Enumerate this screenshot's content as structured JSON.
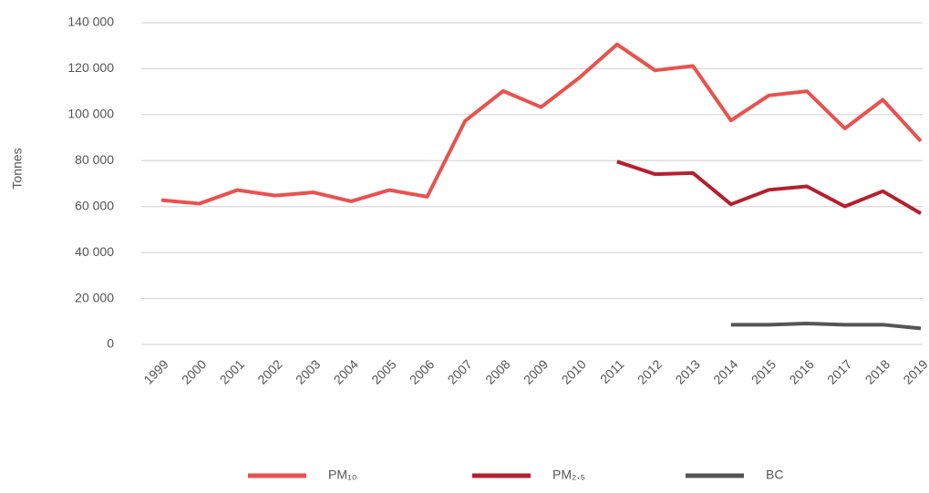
{
  "chart_data": {
    "type": "line",
    "y_label": "Tonnes",
    "categories": [
      "1999",
      "2000",
      "2001",
      "2002",
      "2003",
      "2004",
      "2005",
      "2006",
      "2007",
      "2008",
      "2009",
      "2010",
      "2011",
      "2012",
      "2013",
      "2014",
      "2015",
      "2016",
      "2017",
      "2018",
      "2019"
    ],
    "series": [
      {
        "name": "PM₁₀",
        "color": "#e8524f",
        "values": [
          62800,
          61300,
          67200,
          64800,
          66200,
          62300,
          67200,
          64300,
          97300,
          110300,
          103300,
          116000,
          130600,
          119300,
          121200,
          97500,
          108400,
          110200,
          94000,
          106500,
          88500
        ]
      },
      {
        "name": "PM₂.₅",
        "color": "#b5202e",
        "values": [
          null,
          null,
          null,
          null,
          null,
          null,
          null,
          null,
          null,
          null,
          null,
          null,
          79600,
          74100,
          74600,
          61000,
          67300,
          68800,
          60100,
          66700,
          57000
        ]
      },
      {
        "name": "BC",
        "color": "#555555",
        "values": [
          null,
          null,
          null,
          null,
          null,
          null,
          null,
          null,
          null,
          null,
          null,
          null,
          null,
          null,
          null,
          8600,
          8600,
          9100,
          8600,
          8600,
          7000
        ]
      }
    ],
    "ylim": [
      0,
      140000
    ],
    "yticks": [
      0,
      {
        "value": 20000,
        "label": "20 000"
      },
      {
        "value": 40000,
        "label": "40 000"
      },
      {
        "value": 60000,
        "label": "60 000"
      },
      {
        "value": 80000,
        "label": "80 000"
      },
      {
        "value": 100000,
        "label": "100 000"
      },
      {
        "value": 120000,
        "label": "120 000"
      },
      {
        "value": 140000,
        "label": "140 000"
      }
    ],
    "grid": true,
    "legend": "bottom"
  }
}
